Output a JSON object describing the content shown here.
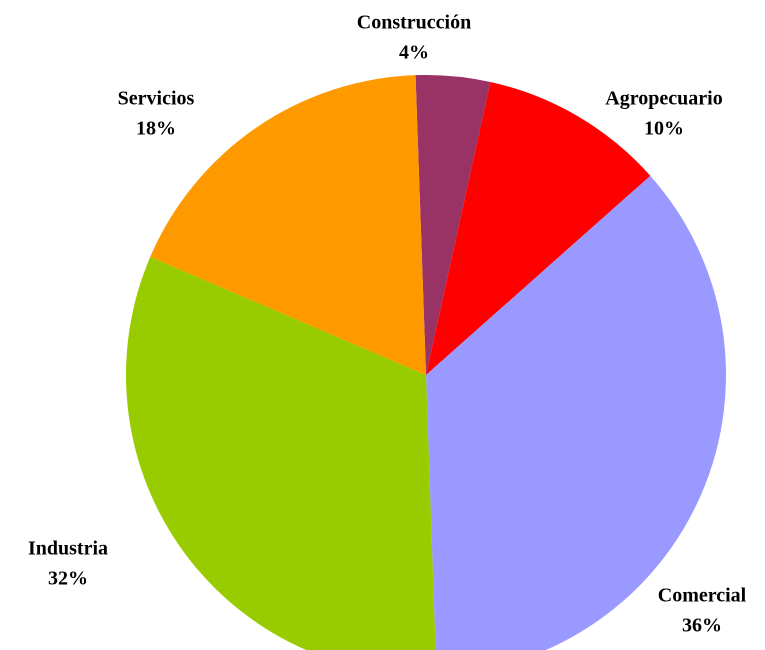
{
  "chart_data": {
    "type": "pie",
    "categories": [
      "Construcción",
      "Agropecuario",
      "Comercial",
      "Industria",
      "Servicios"
    ],
    "values": [
      4,
      10,
      36,
      32,
      18
    ],
    "value_labels": [
      "4%",
      "10%",
      "36%",
      "32%",
      "18%"
    ],
    "colors": [
      "#993366",
      "#ff0000",
      "#9999ff",
      "#99cc00",
      "#ff9900"
    ]
  }
}
